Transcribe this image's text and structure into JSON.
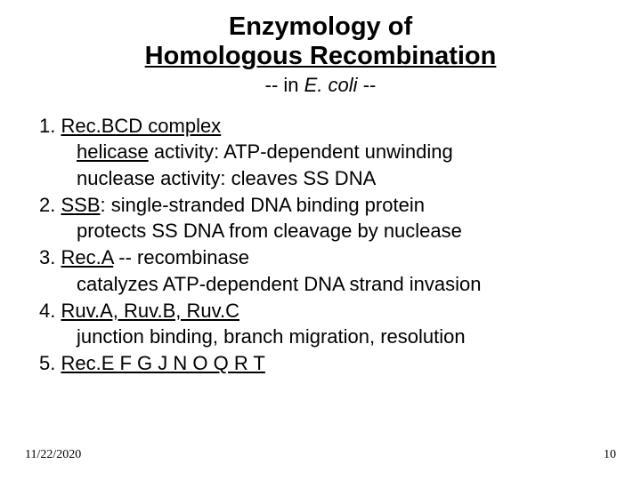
{
  "title": {
    "line1": "Enzymology of",
    "line2": "Homologous Recombination",
    "sub_prefix": "-- in ",
    "sub_italic": "E. coli",
    "sub_suffix": " --"
  },
  "items": [
    {
      "num": "1. ",
      "head_prefix": "",
      "head_underline": "Rec.BCD complex",
      "head_suffix": "",
      "sub1_prefix": "",
      "sub1_underline": "helicase",
      "sub1_suffix": " activity: ATP-dependent unwinding",
      "sub2": "nuclease activity: cleaves SS DNA"
    },
    {
      "num": "2. ",
      "head_prefix": "",
      "head_underline": "SSB",
      "head_suffix": ": single-stranded DNA binding protein",
      "sub1_prefix": "protects SS DNA from cleavage by nuclease",
      "sub1_underline": "",
      "sub1_suffix": "",
      "sub2": ""
    },
    {
      "num": "3. ",
      "head_prefix": "",
      "head_underline": "Rec.A",
      "head_suffix": " -- recombinase",
      "sub1_prefix": "catalyzes ATP-dependent DNA strand invasion",
      "sub1_underline": "",
      "sub1_suffix": "",
      "sub2": ""
    },
    {
      "num": "4. ",
      "head_prefix": "",
      "head_underline": "Ruv.A, Ruv.B, Ruv.C",
      "head_suffix": "",
      "sub1_prefix": "junction binding, branch migration, resolution",
      "sub1_underline": "",
      "sub1_suffix": "",
      "sub2": ""
    },
    {
      "num": "5. ",
      "head_prefix": "",
      "head_underline": "Rec.E F G J N O Q R T",
      "head_suffix": "",
      "sub1_prefix": "",
      "sub1_underline": "",
      "sub1_suffix": "",
      "sub2": ""
    }
  ],
  "footer": {
    "date": "11/22/2020",
    "page": "10"
  },
  "colors": {
    "bg": "#ffffff",
    "text": "#000000"
  }
}
